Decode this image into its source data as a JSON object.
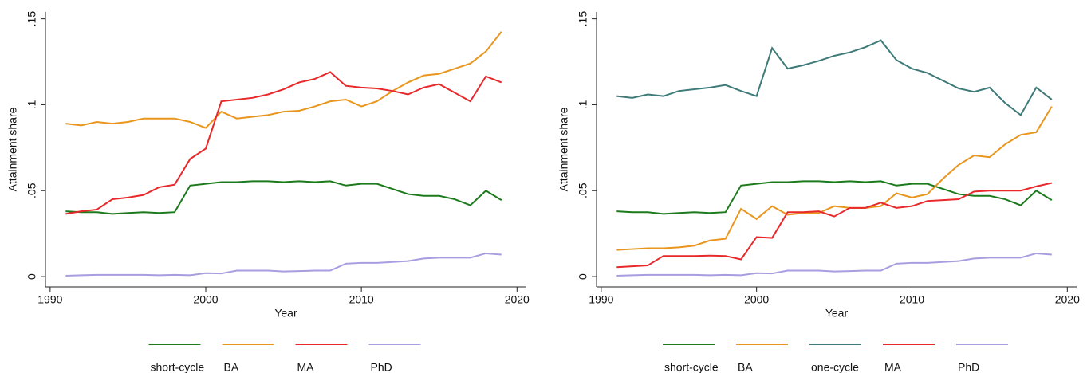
{
  "chart_data": [
    {
      "type": "line",
      "xlabel": "Year",
      "ylabel": "Attainment share",
      "legend": "bottom",
      "xlim": [
        1989.7,
        2020.6
      ],
      "xticks": [
        1990,
        2000,
        2010,
        2020
      ],
      "ylim": [
        -0.006,
        0.154
      ],
      "yticks": [
        0,
        {
          "value": 0.05,
          "label": ".05"
        },
        {
          "value": 0.1,
          "label": ".1"
        },
        {
          "value": 0.15,
          "label": ".15"
        }
      ],
      "x": [
        1991,
        1992,
        1993,
        1994,
        1995,
        1996,
        1997,
        1998,
        1999,
        2000,
        2001,
        2002,
        2003,
        2004,
        2005,
        2006,
        2007,
        2008,
        2009,
        2010,
        2011,
        2012,
        2013,
        2014,
        2015,
        2016,
        2017,
        2018,
        2019
      ],
      "series": [
        {
          "name": "short-cycle",
          "color": "#1c7a1c",
          "values": [
            0.038,
            0.0375,
            0.0375,
            0.0365,
            0.037,
            0.0375,
            0.037,
            0.0375,
            0.053,
            0.054,
            0.055,
            0.055,
            0.0555,
            0.0555,
            0.055,
            0.0555,
            0.055,
            0.0555,
            0.053,
            0.054,
            0.054,
            0.051,
            0.048,
            0.047,
            0.047,
            0.045,
            0.0415,
            0.05,
            0.0445
          ]
        },
        {
          "name": "BA",
          "color": "#e8961e",
          "values": [
            0.089,
            0.088,
            0.09,
            0.089,
            0.09,
            0.092,
            0.092,
            0.092,
            0.09,
            0.0865,
            0.096,
            0.092,
            0.093,
            0.094,
            0.096,
            0.0965,
            0.099,
            0.102,
            0.103,
            0.099,
            0.102,
            0.108,
            0.113,
            0.117,
            0.118,
            0.121,
            0.124,
            0.131,
            0.1425
          ]
        },
        {
          "name": "MA",
          "color": "#e8282a",
          "values": [
            0.0365,
            0.038,
            0.039,
            0.045,
            0.046,
            0.0475,
            0.052,
            0.0535,
            0.0685,
            0.0745,
            0.102,
            0.103,
            0.104,
            0.106,
            0.109,
            0.113,
            0.115,
            0.119,
            0.111,
            0.11,
            0.1095,
            0.108,
            0.106,
            0.11,
            0.112,
            0.107,
            0.102,
            0.1165,
            0.113
          ]
        },
        {
          "name": "PhD",
          "color": "#a99de0",
          "values": [
            0.0005,
            0.0008,
            0.001,
            0.001,
            0.001,
            0.001,
            0.0008,
            0.001,
            0.0008,
            0.002,
            0.0018,
            0.0035,
            0.0035,
            0.0035,
            0.003,
            0.0032,
            0.0035,
            0.0035,
            0.0075,
            0.008,
            0.008,
            0.0085,
            0.009,
            0.0105,
            0.011,
            0.011,
            0.011,
            0.0135,
            0.0128
          ]
        }
      ]
    },
    {
      "type": "line",
      "xlabel": "Year",
      "ylabel": "Attainment share",
      "legend": "bottom",
      "xlim": [
        1989.7,
        2020.6
      ],
      "xticks": [
        1990,
        2000,
        2010,
        2020
      ],
      "ylim": [
        -0.006,
        0.154
      ],
      "yticks": [
        0,
        {
          "value": 0.05,
          "label": ".05"
        },
        {
          "value": 0.1,
          "label": ".1"
        },
        {
          "value": 0.15,
          "label": ".15"
        }
      ],
      "x": [
        1991,
        1992,
        1993,
        1994,
        1995,
        1996,
        1997,
        1998,
        1999,
        2000,
        2001,
        2002,
        2003,
        2004,
        2005,
        2006,
        2007,
        2008,
        2009,
        2010,
        2011,
        2012,
        2013,
        2014,
        2015,
        2016,
        2017,
        2018,
        2019
      ],
      "series": [
        {
          "name": "short-cycle",
          "color": "#1c7a1c",
          "values": [
            0.038,
            0.0375,
            0.0375,
            0.0365,
            0.037,
            0.0375,
            0.037,
            0.0375,
            0.053,
            0.054,
            0.055,
            0.055,
            0.0555,
            0.0555,
            0.055,
            0.0555,
            0.055,
            0.0555,
            0.053,
            0.054,
            0.054,
            0.051,
            0.048,
            0.047,
            0.047,
            0.045,
            0.0415,
            0.05,
            0.0445
          ]
        },
        {
          "name": "BA",
          "color": "#e8961e",
          "values": [
            0.0155,
            0.016,
            0.0165,
            0.0165,
            0.017,
            0.018,
            0.021,
            0.022,
            0.0395,
            0.0335,
            0.041,
            0.036,
            0.037,
            0.037,
            0.041,
            0.04,
            0.04,
            0.041,
            0.0485,
            0.046,
            0.048,
            0.057,
            0.065,
            0.0705,
            0.0695,
            0.077,
            0.0825,
            0.084,
            0.099
          ]
        },
        {
          "name": "one-cycle",
          "color": "#3d7a78",
          "values": [
            0.105,
            0.104,
            0.106,
            0.105,
            0.108,
            0.109,
            0.11,
            0.1115,
            0.108,
            0.105,
            0.133,
            0.121,
            0.123,
            0.1255,
            0.1285,
            0.1305,
            0.1335,
            0.1375,
            0.126,
            0.121,
            0.1185,
            0.114,
            0.1095,
            0.1075,
            0.11,
            0.101,
            0.094,
            0.11,
            0.103
          ]
        },
        {
          "name": "MA",
          "color": "#e8282a",
          "values": [
            0.0055,
            0.006,
            0.0065,
            0.012,
            0.012,
            0.012,
            0.0122,
            0.012,
            0.01,
            0.023,
            0.0225,
            0.0375,
            0.0375,
            0.038,
            0.035,
            0.04,
            0.04,
            0.043,
            0.04,
            0.041,
            0.044,
            0.0445,
            0.045,
            0.0495,
            0.05,
            0.05,
            0.05,
            0.0525,
            0.0545
          ]
        },
        {
          "name": "PhD",
          "color": "#a99de0",
          "values": [
            0.0005,
            0.0008,
            0.001,
            0.001,
            0.001,
            0.001,
            0.0008,
            0.001,
            0.0008,
            0.002,
            0.0018,
            0.0035,
            0.0035,
            0.0035,
            0.003,
            0.0032,
            0.0035,
            0.0035,
            0.0075,
            0.008,
            0.008,
            0.0085,
            0.009,
            0.0105,
            0.011,
            0.011,
            0.011,
            0.0135,
            0.0128
          ]
        }
      ]
    }
  ]
}
